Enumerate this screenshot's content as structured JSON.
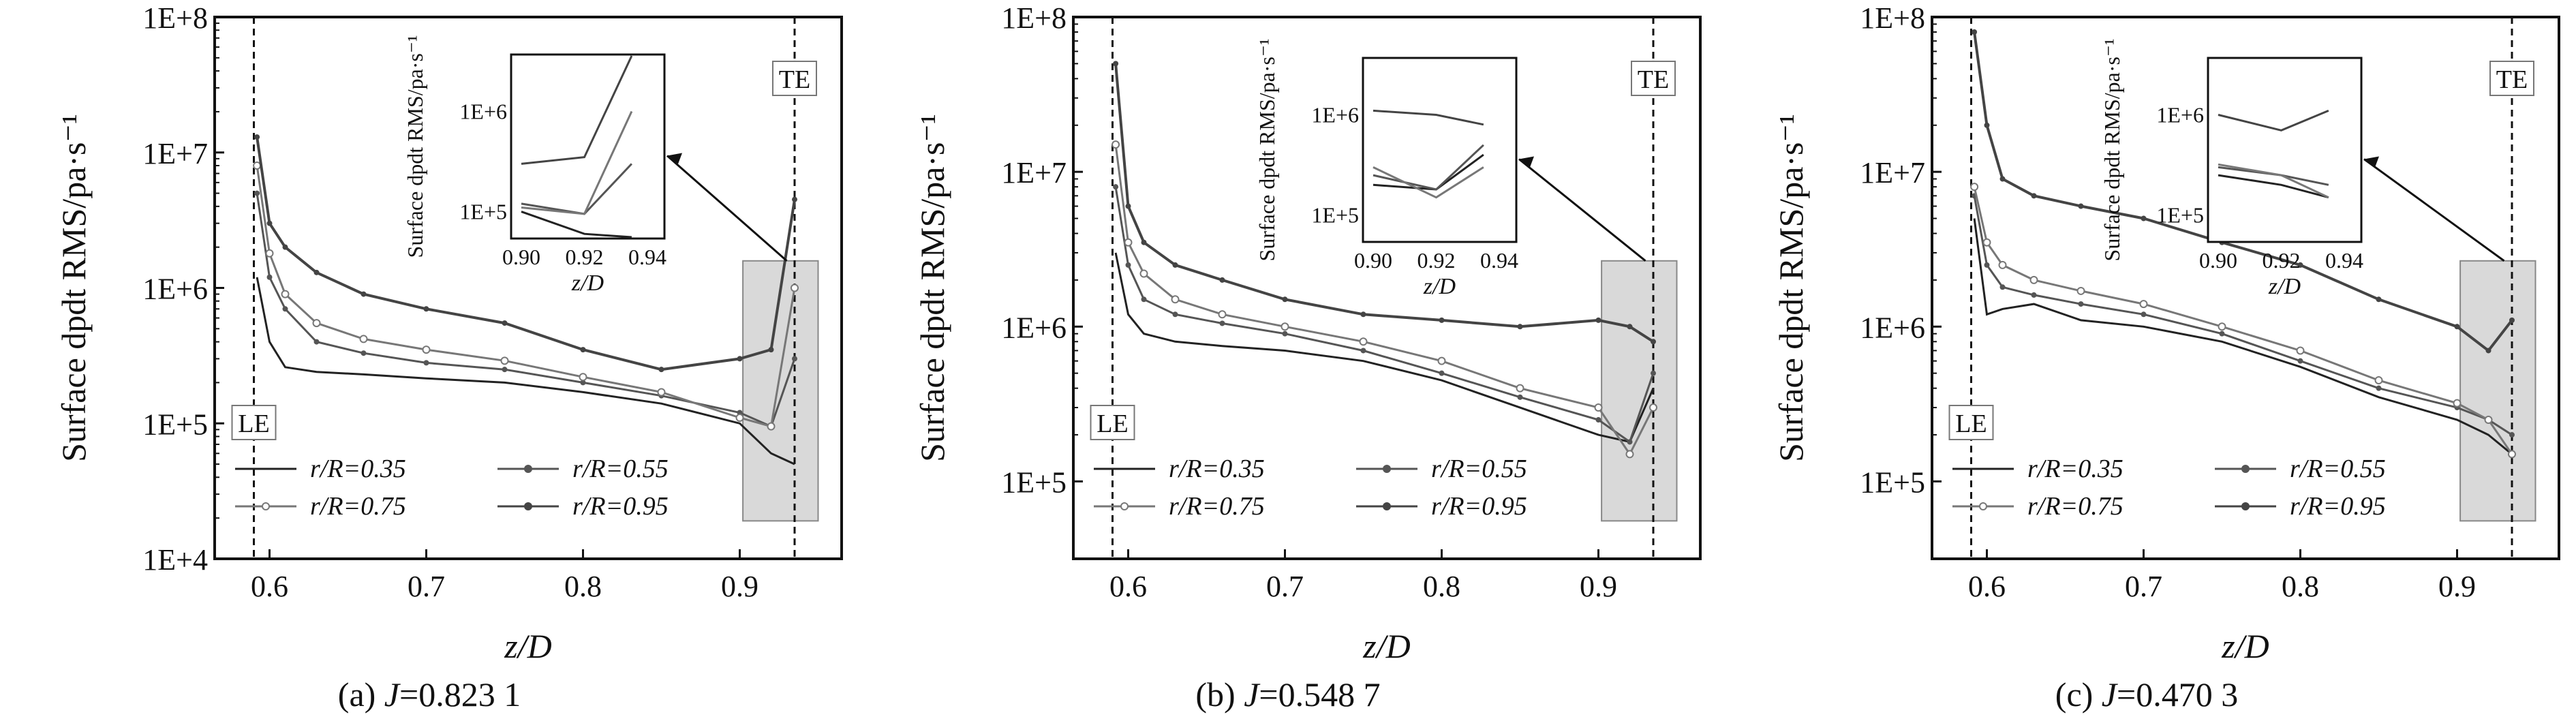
{
  "chart_data": [
    {
      "type": "line",
      "caption": {
        "prefix": "(a) ",
        "var": "J",
        "value": "=0.823 1"
      },
      "xlabel": "z/D",
      "ylabel": "Surface dpdt RMS/pa·s⁻¹",
      "xlim": [
        0.565,
        0.965
      ],
      "ylim_log10": [
        4,
        8
      ],
      "y_ticks": [
        "1E+4",
        "1E+5",
        "1E+6",
        "1E+7",
        "1E+8"
      ],
      "x_ticks": [
        "0.6",
        "0.7",
        "0.8",
        "0.9"
      ],
      "le_label": "LE",
      "te_label": "TE",
      "le_x": 0.59,
      "te_x": 0.935,
      "legend_position": "bottom-left",
      "series": [
        {
          "name": "r/R=0.35",
          "color": "#222222",
          "marker": "none",
          "x": [
            0.592,
            0.6,
            0.61,
            0.63,
            0.66,
            0.7,
            0.75,
            0.8,
            0.85,
            0.9,
            0.92,
            0.935
          ],
          "y": [
            1200000,
            400000,
            260000,
            240000,
            230000,
            215000,
            200000,
            170000,
            140000,
            100000,
            60000,
            50000
          ]
        },
        {
          "name": "r/R=0.55",
          "color": "#555555",
          "marker": "plus",
          "x": [
            0.592,
            0.6,
            0.61,
            0.63,
            0.66,
            0.7,
            0.75,
            0.8,
            0.85,
            0.9,
            0.92,
            0.935
          ],
          "y": [
            5000000,
            1200000,
            700000,
            400000,
            330000,
            280000,
            250000,
            200000,
            160000,
            120000,
            95000,
            300000
          ]
        },
        {
          "name": "r/R=0.75",
          "color": "#777777",
          "marker": "circle",
          "x": [
            0.592,
            0.6,
            0.61,
            0.63,
            0.66,
            0.7,
            0.75,
            0.8,
            0.85,
            0.9,
            0.92,
            0.935
          ],
          "y": [
            8000000,
            1800000,
            900000,
            550000,
            420000,
            350000,
            290000,
            220000,
            170000,
            110000,
            95000,
            1000000
          ]
        },
        {
          "name": "r/R=0.95",
          "color": "#444444",
          "marker": "plus",
          "x": [
            0.592,
            0.6,
            0.61,
            0.63,
            0.66,
            0.7,
            0.75,
            0.8,
            0.85,
            0.9,
            0.92,
            0.935
          ],
          "y": [
            13000000,
            3000000,
            2000000,
            1300000,
            900000,
            700000,
            550000,
            350000,
            250000,
            300000,
            350000,
            4500000
          ]
        }
      ],
      "inset": {
        "ylabel": "Surface dpdt RMS/pa·s⁻¹",
        "xlabel": "z/D",
        "x_ticks": [
          "0.90",
          "0.92",
          "0.94"
        ],
        "y_ticks": [
          "1E+5",
          "1E+6"
        ]
      }
    },
    {
      "type": "line",
      "caption": {
        "prefix": "(b) ",
        "var": "J",
        "value": "=0.548 7"
      },
      "xlabel": "z/D",
      "ylabel": "Surface dpdt RMS/pa·s⁻¹",
      "xlim": [
        0.565,
        0.965
      ],
      "ylim_log10": [
        4.5,
        8
      ],
      "y_ticks": [
        "1E+5",
        "1E+6",
        "1E+7",
        "1E+8"
      ],
      "x_ticks": [
        "0.6",
        "0.7",
        "0.8",
        "0.9"
      ],
      "le_label": "LE",
      "te_label": "TE",
      "le_x": 0.59,
      "te_x": 0.935,
      "legend_position": "bottom-left",
      "series": [
        {
          "name": "r/R=0.35",
          "color": "#222222",
          "marker": "none",
          "x": [
            0.592,
            0.6,
            0.61,
            0.63,
            0.66,
            0.7,
            0.75,
            0.8,
            0.85,
            0.9,
            0.92,
            0.935
          ],
          "y": [
            3000000,
            1200000,
            900000,
            800000,
            750000,
            700000,
            600000,
            450000,
            300000,
            200000,
            180000,
            400000
          ]
        },
        {
          "name": "r/R=0.55",
          "color": "#555555",
          "marker": "plus",
          "x": [
            0.592,
            0.6,
            0.61,
            0.63,
            0.66,
            0.7,
            0.75,
            0.8,
            0.85,
            0.9,
            0.92,
            0.935
          ],
          "y": [
            8000000,
            2500000,
            1500000,
            1200000,
            1050000,
            900000,
            700000,
            500000,
            350000,
            250000,
            180000,
            500000
          ]
        },
        {
          "name": "r/R=0.75",
          "color": "#777777",
          "marker": "circle",
          "x": [
            0.592,
            0.6,
            0.61,
            0.63,
            0.66,
            0.7,
            0.75,
            0.8,
            0.85,
            0.9,
            0.92,
            0.935
          ],
          "y": [
            15000000,
            3500000,
            2200000,
            1500000,
            1200000,
            1000000,
            800000,
            600000,
            400000,
            300000,
            150000,
            300000
          ]
        },
        {
          "name": "r/R=0.95",
          "color": "#444444",
          "marker": "plus",
          "x": [
            0.592,
            0.6,
            0.61,
            0.63,
            0.66,
            0.7,
            0.75,
            0.8,
            0.85,
            0.9,
            0.92,
            0.935
          ],
          "y": [
            50000000,
            6000000,
            3500000,
            2500000,
            2000000,
            1500000,
            1200000,
            1100000,
            1000000,
            1100000,
            1000000,
            800000
          ]
        }
      ],
      "inset": {
        "ylabel": "Surface dpdt RMS/pa·s⁻¹",
        "xlabel": "z/D",
        "x_ticks": [
          "0.90",
          "0.92",
          "0.94"
        ],
        "y_ticks": [
          "1E+5",
          "1E+6"
        ]
      }
    },
    {
      "type": "line",
      "caption": {
        "prefix": "(c) ",
        "var": "J",
        "value": "=0.470 3"
      },
      "xlabel": "z/D",
      "ylabel": "Surface dpdt RMS/pa·s⁻¹",
      "xlim": [
        0.565,
        0.965
      ],
      "ylim_log10": [
        4.5,
        8
      ],
      "y_ticks": [
        "1E+5",
        "1E+6",
        "1E+7",
        "1E+8"
      ],
      "x_ticks": [
        "0.6",
        "0.7",
        "0.8",
        "0.9"
      ],
      "le_label": "LE",
      "te_label": "TE",
      "le_x": 0.59,
      "te_x": 0.935,
      "legend_position": "bottom-left",
      "series": [
        {
          "name": "r/R=0.35",
          "color": "#222222",
          "marker": "none",
          "x": [
            0.592,
            0.6,
            0.61,
            0.63,
            0.66,
            0.7,
            0.75,
            0.8,
            0.85,
            0.9,
            0.92,
            0.935
          ],
          "y": [
            5000000,
            1200000,
            1300000,
            1400000,
            1100000,
            1000000,
            800000,
            550000,
            350000,
            250000,
            200000,
            150000
          ]
        },
        {
          "name": "r/R=0.55",
          "color": "#555555",
          "marker": "plus",
          "x": [
            0.592,
            0.6,
            0.61,
            0.63,
            0.66,
            0.7,
            0.75,
            0.8,
            0.85,
            0.9,
            0.92,
            0.935
          ],
          "y": [
            7000000,
            2500000,
            1800000,
            1600000,
            1400000,
            1200000,
            900000,
            600000,
            400000,
            300000,
            250000,
            200000
          ]
        },
        {
          "name": "r/R=0.75",
          "color": "#777777",
          "marker": "circle",
          "x": [
            0.592,
            0.6,
            0.61,
            0.63,
            0.66,
            0.7,
            0.75,
            0.8,
            0.85,
            0.9,
            0.92,
            0.935
          ],
          "y": [
            8000000,
            3500000,
            2500000,
            2000000,
            1700000,
            1400000,
            1000000,
            700000,
            450000,
            320000,
            250000,
            150000
          ]
        },
        {
          "name": "r/R=0.95",
          "color": "#444444",
          "marker": "plus",
          "x": [
            0.592,
            0.6,
            0.61,
            0.63,
            0.66,
            0.7,
            0.75,
            0.8,
            0.85,
            0.9,
            0.92,
            0.935
          ],
          "y": [
            80000000,
            20000000,
            9000000,
            7000000,
            6000000,
            5000000,
            3500000,
            2500000,
            1500000,
            1000000,
            700000,
            1100000
          ]
        }
      ],
      "inset": {
        "ylabel": "Surface dpdt RMS/pa·s⁻¹",
        "xlabel": "z/D",
        "x_ticks": [
          "0.90",
          "0.92",
          "0.94"
        ],
        "y_ticks": [
          "1E+5",
          "1E+6"
        ]
      }
    }
  ]
}
